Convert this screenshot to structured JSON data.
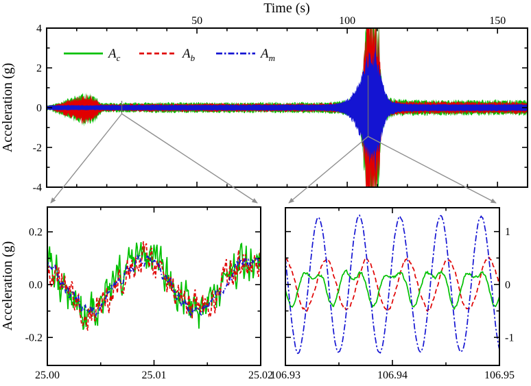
{
  "figure": {
    "top_axis_title": "Time (s)",
    "main_ylabel": "Acceleration (g)",
    "inset_ylabel": "Acceleration (g)",
    "background": "#ffffff",
    "axis_color": "#000000",
    "arrow_color": "#8f8f8f"
  },
  "legend": {
    "items": [
      {
        "label": "A",
        "sub": "c",
        "series": "Ac",
        "color": "#00c000",
        "style": "solid"
      },
      {
        "label": "A",
        "sub": "b",
        "series": "Ab",
        "color": "#e00000",
        "style": "dashed"
      },
      {
        "label": "A",
        "sub": "m",
        "series": "Am",
        "color": "#1414d2",
        "style": "dashdot"
      }
    ]
  },
  "chart_data": [
    {
      "id": "main",
      "type": "line",
      "xlabel": "Time (s)",
      "xlabel_position": "top",
      "ylabel": "Acceleration (g)",
      "xlim": [
        0,
        160
      ],
      "ylim": [
        -4,
        4
      ],
      "xticks": [
        50,
        100,
        150
      ],
      "xtick_labels": [
        "50",
        "100",
        "150"
      ],
      "xtick_minor_step": 10,
      "yticks": [
        4,
        2,
        0,
        -2,
        -4
      ],
      "ytick_labels": [
        "4",
        "2",
        "0",
        "-2",
        "-4"
      ],
      "ytick_minor_step": 1,
      "grid": false,
      "legend_position": "upper-left-inside",
      "series": [
        {
          "name": "Ac",
          "color": "#00c000",
          "style": "solid",
          "render": "envelope",
          "envelope": [
            [
              0,
              0.12
            ],
            [
              2,
              0.16
            ],
            [
              4,
              0.26
            ],
            [
              6,
              0.36
            ],
            [
              9,
              0.52
            ],
            [
              12,
              0.66
            ],
            [
              14,
              0.68
            ],
            [
              16,
              0.55
            ],
            [
              17.5,
              0.3
            ],
            [
              18.5,
              0.2
            ],
            [
              20,
              0.22
            ],
            [
              30,
              0.24
            ],
            [
              50,
              0.25
            ],
            [
              70,
              0.25
            ],
            [
              90,
              0.26
            ],
            [
              97,
              0.3
            ],
            [
              100,
              0.38
            ],
            [
              102,
              0.55
            ],
            [
              104,
              1.0
            ],
            [
              105,
              1.9
            ],
            [
              106,
              3.6
            ],
            [
              106.5,
              4.8
            ],
            [
              108.5,
              4.8
            ],
            [
              109.5,
              4.8
            ],
            [
              110,
              3.6
            ],
            [
              110.6,
              4.4
            ],
            [
              111,
              2.2
            ],
            [
              111.6,
              1.1
            ],
            [
              112.5,
              0.7
            ],
            [
              114,
              0.5
            ],
            [
              116,
              0.42
            ],
            [
              120,
              0.38
            ],
            [
              140,
              0.36
            ],
            [
              160,
              0.36
            ]
          ],
          "early_lower_scale": 1.25,
          "early_range": [
            2,
            19
          ]
        },
        {
          "name": "Ab",
          "color": "#e00000",
          "style": "dashed",
          "render": "envelope",
          "envelope": [
            [
              0,
              0.09
            ],
            [
              2,
              0.12
            ],
            [
              4,
              0.2
            ],
            [
              6,
              0.3
            ],
            [
              9,
              0.44
            ],
            [
              12,
              0.58
            ],
            [
              14,
              0.6
            ],
            [
              16,
              0.48
            ],
            [
              17.5,
              0.24
            ],
            [
              18.5,
              0.15
            ],
            [
              20,
              0.17
            ],
            [
              30,
              0.19
            ],
            [
              50,
              0.2
            ],
            [
              70,
              0.2
            ],
            [
              90,
              0.21
            ],
            [
              97,
              0.25
            ],
            [
              100,
              0.32
            ],
            [
              102,
              0.48
            ],
            [
              104,
              0.9
            ],
            [
              105,
              1.7
            ],
            [
              106,
              3.4
            ],
            [
              106.5,
              4.7
            ],
            [
              108.5,
              4.7
            ],
            [
              109.5,
              4.7
            ],
            [
              110,
              3.3
            ],
            [
              110.6,
              4.2
            ],
            [
              111,
              2.0
            ],
            [
              111.6,
              0.95
            ],
            [
              112.5,
              0.6
            ],
            [
              114,
              0.42
            ],
            [
              116,
              0.35
            ],
            [
              120,
              0.3
            ],
            [
              140,
              0.29
            ],
            [
              160,
              0.29
            ]
          ],
          "early_lower_scale": 1.25,
          "early_range": [
            2,
            19
          ]
        },
        {
          "name": "Am",
          "color": "#1414d2",
          "style": "dashdot",
          "render": "envelope",
          "envelope": [
            [
              0,
              0.1
            ],
            [
              3,
              0.12
            ],
            [
              17,
              0.12
            ],
            [
              19,
              0.13
            ],
            [
              60,
              0.14
            ],
            [
              90,
              0.15
            ],
            [
              96,
              0.18
            ],
            [
              99,
              0.3
            ],
            [
              101,
              0.5
            ],
            [
              103,
              0.95
            ],
            [
              104.5,
              1.5
            ],
            [
              106,
              2.2
            ],
            [
              107,
              2.55
            ],
            [
              108,
              2.6
            ],
            [
              109,
              2.5
            ],
            [
              109.4,
              3.1
            ],
            [
              109.8,
              2.3
            ],
            [
              110.5,
              2.0
            ],
            [
              111.5,
              1.4
            ],
            [
              112.5,
              0.85
            ],
            [
              113.5,
              0.5
            ],
            [
              115,
              0.3
            ],
            [
              118,
              0.2
            ],
            [
              125,
              0.17
            ],
            [
              160,
              0.16
            ]
          ],
          "early_lower_scale": 1.0,
          "early_range": [
            0,
            0
          ]
        }
      ],
      "callouts": [
        {
          "target_time_s": 25.0,
          "links_to": "inset_left"
        },
        {
          "target_time_s": 106.94,
          "links_to": "inset_right"
        }
      ]
    },
    {
      "id": "inset_left",
      "type": "line",
      "ylabel": "Acceleration (g)",
      "ytick_label_side": "left",
      "xlim": [
        25.0,
        25.02
      ],
      "ylim": [
        -0.306,
        0.294
      ],
      "xticks": [
        25.0,
        25.01,
        25.02
      ],
      "xtick_labels": [
        "25.00",
        "25.01",
        "25.02"
      ],
      "xtick_minor": [
        25.005,
        25.015
      ],
      "yticks": [
        0.2,
        0.0,
        -0.2
      ],
      "ytick_labels": [
        "0.2",
        "0.0",
        "-0.2"
      ],
      "ytick_minor": [
        0.1,
        -0.1
      ],
      "grid": false,
      "series": [
        {
          "name": "Ac",
          "color": "#00c000",
          "style": "solid",
          "render": "sinusoid",
          "amplitude_g": 0.095,
          "period_s": 0.01,
          "peak_time_s": 25.009,
          "harmonic2_amp_g": 0,
          "noise_g": 0.055
        },
        {
          "name": "Ab",
          "color": "#e00000",
          "style": "dashed",
          "render": "sinusoid",
          "amplitude_g": 0.095,
          "period_s": 0.01,
          "peak_time_s": 25.009,
          "harmonic2_amp_g": 0,
          "noise_g": 0.04
        },
        {
          "name": "Am",
          "color": "#1414d2",
          "style": "dashdot",
          "render": "sinusoid",
          "amplitude_g": 0.095,
          "period_s": 0.01,
          "peak_time_s": 25.009,
          "harmonic2_amp_g": 0,
          "noise_g": 0.018
        }
      ]
    },
    {
      "id": "inset_right",
      "type": "line",
      "ytick_label_side": "right",
      "xlim": [
        106.93,
        106.95
      ],
      "ylim": [
        -1.53,
        1.45
      ],
      "xticks": [
        106.93,
        106.94,
        106.95
      ],
      "xtick_labels": [
        "106.93",
        "106.94",
        "106.95"
      ],
      "xtick_minor": [
        106.935,
        106.945
      ],
      "yticks": [
        1,
        0,
        -1
      ],
      "ytick_labels": [
        "1",
        "0",
        "-1"
      ],
      "ytick_minor": [
        0.5,
        -0.5
      ],
      "grid": false,
      "series": [
        {
          "name": "Ab",
          "color": "#e00000",
          "style": "dashed",
          "render": "sinusoid",
          "amplitude_g": 0.47,
          "period_s": 0.0038,
          "peak_time_s": 106.9338,
          "harmonic2_amp_g": 0,
          "noise_g": 0.03
        },
        {
          "name": "Ac",
          "color": "#00c000",
          "style": "solid",
          "render": "sinusoid",
          "amplitude_g": 0.27,
          "period_s": 0.0038,
          "peak_time_s": 106.9325,
          "harmonic2_amp_g": 0.15,
          "noise_g": 0.03
        },
        {
          "name": "Am",
          "color": "#1414d2",
          "style": "dashdot",
          "render": "sinusoid",
          "amplitude_g": 1.28,
          "period_s": 0.0038,
          "peak_time_s": 106.9331,
          "harmonic2_amp_g": 0,
          "noise_g": 0.02
        }
      ]
    }
  ]
}
